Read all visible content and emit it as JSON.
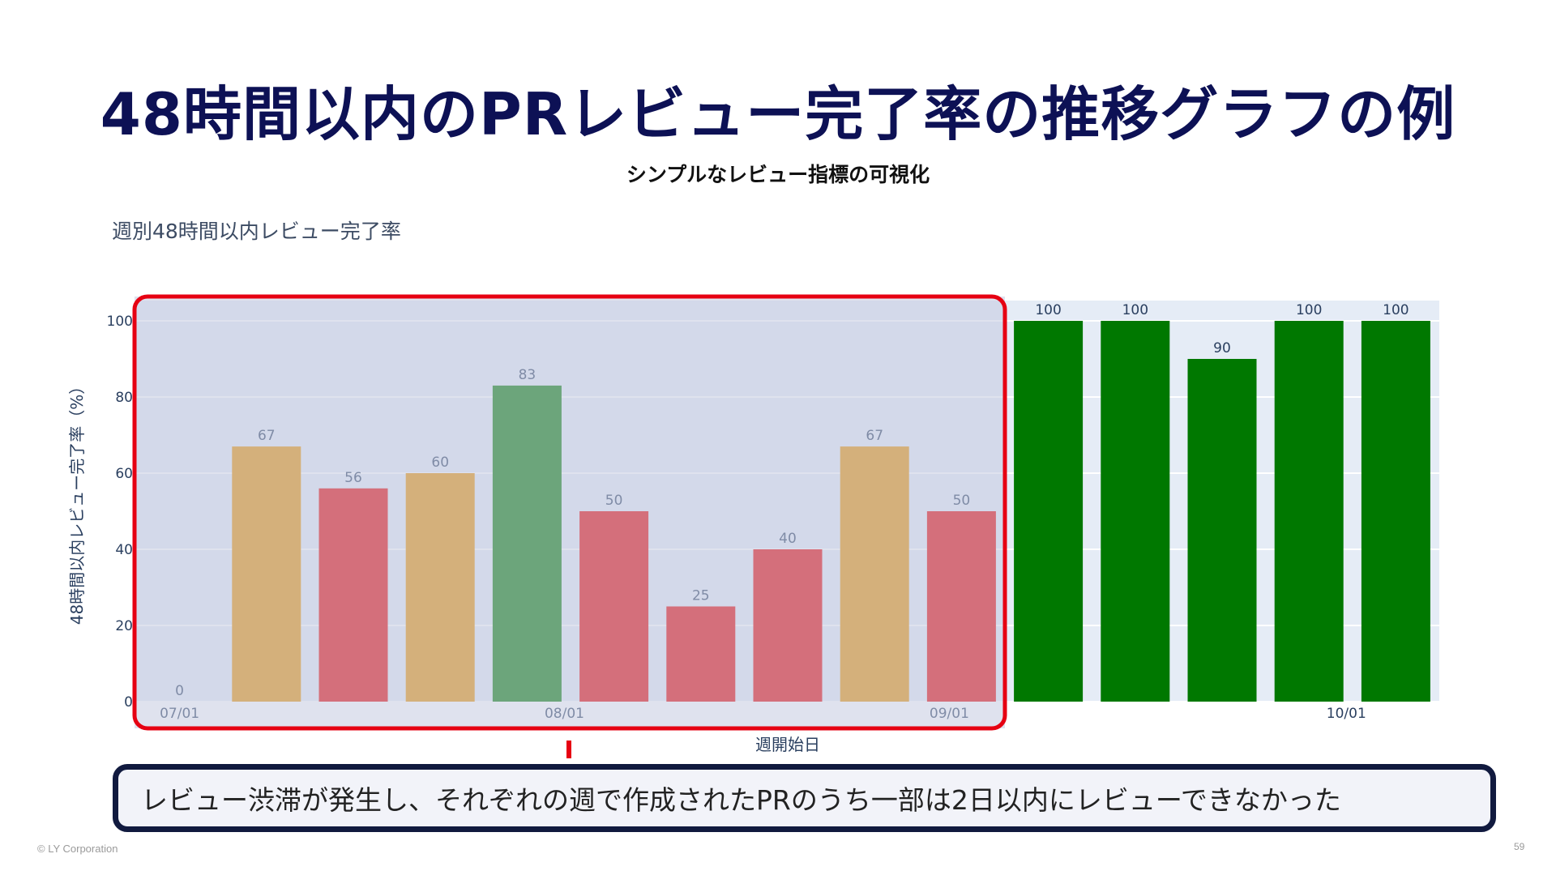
{
  "slide": {
    "title": "48時間以内のPRレビュー完了率の推移グラフの例",
    "subtitle": "シンプルなレビュー指標の可視化",
    "callout": "レビュー渋滞が発生し、それぞれの週で作成されたPRのうち一部は2日以内にレビューできなかった",
    "footer": "© LY Corporation",
    "page_number": "59"
  },
  "chart_data": {
    "type": "bar",
    "title": "週別48時間以内レビュー完了率",
    "xlabel": "週開始日",
    "ylabel": "48時間以内レビュー完了率（%）",
    "ylim": [
      0,
      100
    ],
    "yticks": [
      0,
      20,
      40,
      60,
      80,
      100
    ],
    "ytick_labels": [
      "0",
      "20",
      "40",
      "60",
      "80",
      "100"
    ],
    "x_tick_labels": [
      "07/01",
      "08/01",
      "09/01",
      "10/01"
    ],
    "x_tick_positions": [
      0,
      4.43,
      8.86,
      13.43
    ],
    "grid": true,
    "values": [
      0,
      67,
      56,
      60,
      83,
      50,
      25,
      40,
      67,
      50,
      100,
      100,
      90,
      100,
      100
    ],
    "bar_colors": [
      "#2ca02c",
      "#e69100",
      "#e60000",
      "#e69100",
      "#007800",
      "#e60000",
      "#e60000",
      "#e60000",
      "#e69100",
      "#e60000",
      "#007800",
      "#007800",
      "#007800",
      "#007800",
      "#007800"
    ],
    "highlight_range": [
      0,
      9
    ]
  },
  "colors": {
    "title": "#0d1155",
    "plot_bg": "#e5ecf6",
    "highlight_overlay": "#c5cae0",
    "highlight_border": "#e60012",
    "callout_border": "#111a3f",
    "green": "#007800",
    "orange": "#e69100",
    "red": "#e60000"
  }
}
